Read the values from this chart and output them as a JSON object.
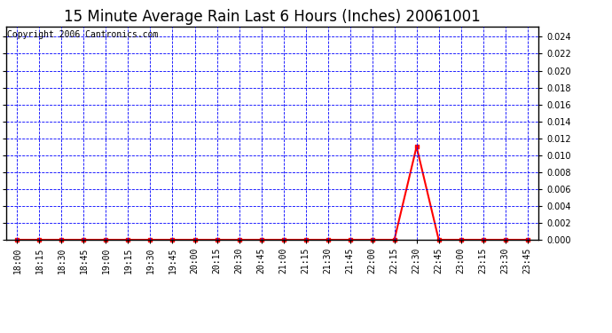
{
  "title": "15 Minute Average Rain Last 6 Hours (Inches) 20061001",
  "copyright_text": "Copyright 2006 Cantronics.com",
  "background_color": "#ffffff",
  "plot_bg_color": "#ffffff",
  "line_color": "#ff0000",
  "grid_color": "#0000ff",
  "ylim": [
    0.0,
    0.0252
  ],
  "yticks": [
    0.0,
    0.002,
    0.004,
    0.006,
    0.008,
    0.01,
    0.012,
    0.014,
    0.016,
    0.018,
    0.02,
    0.022,
    0.024
  ],
  "time_labels": [
    "18:00",
    "18:15",
    "18:30",
    "18:45",
    "19:00",
    "19:15",
    "19:30",
    "19:45",
    "20:00",
    "20:15",
    "20:30",
    "20:45",
    "21:00",
    "21:15",
    "21:30",
    "21:45",
    "22:00",
    "22:15",
    "22:30",
    "22:45",
    "23:00",
    "23:15",
    "23:30",
    "23:45"
  ],
  "values": [
    0.0,
    0.0,
    0.0,
    0.0,
    0.0,
    0.0,
    0.0,
    0.0,
    0.0,
    0.0,
    0.0,
    0.0,
    0.0,
    0.0,
    0.0,
    0.0,
    0.0,
    0.0,
    0.011,
    0.0,
    0.0,
    0.0,
    0.0,
    0.0
  ],
  "title_fontsize": 12,
  "marker": "s",
  "marker_size": 3,
  "line_width": 1.5,
  "tick_fontsize": 7,
  "copyright_fontsize": 7
}
